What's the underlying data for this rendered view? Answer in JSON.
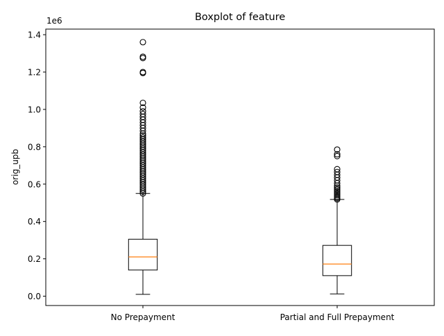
{
  "chart_data": {
    "type": "boxplot",
    "title": "Boxplot of feature",
    "xlabel": "",
    "ylabel": "orig_upb",
    "y_offset_label": "1e6",
    "ylim": [
      -50000,
      1430000
    ],
    "yticks": [
      0.0,
      0.2,
      0.4,
      0.6,
      0.8,
      1.0,
      1.2,
      1.4
    ],
    "ytick_labels": [
      "0.0",
      "0.2",
      "0.4",
      "0.6",
      "0.8",
      "1.0",
      "1.2",
      "1.4"
    ],
    "grid": false,
    "categories": [
      "No Prepayment",
      "Partial and Full Prepayment"
    ],
    "boxes": [
      {
        "whisker_low": 10000,
        "q1": 140000,
        "median": 210000,
        "q3": 305000,
        "whisker_high": 550000,
        "outliers": [
          550000,
          560000,
          570000,
          580000,
          590000,
          600000,
          610000,
          620000,
          630000,
          640000,
          650000,
          660000,
          670000,
          680000,
          690000,
          700000,
          710000,
          720000,
          730000,
          740000,
          750000,
          760000,
          770000,
          780000,
          790000,
          800000,
          810000,
          820000,
          830000,
          840000,
          850000,
          860000,
          870000,
          885000,
          900000,
          915000,
          930000,
          945000,
          960000,
          975000,
          990000,
          1010000,
          1035000,
          1195000,
          1200000,
          1275000,
          1282000,
          1360000
        ]
      },
      {
        "whisker_low": 12000,
        "q1": 110000,
        "median": 172000,
        "q3": 272000,
        "whisker_high": 518000,
        "outliers": [
          518000,
          525000,
          533000,
          541000,
          549000,
          557000,
          565000,
          573000,
          582000,
          592000,
          605000,
          620000,
          635000,
          650000,
          665000,
          680000,
          750000,
          760000,
          785000
        ]
      }
    ],
    "colors": {
      "box": "#000000",
      "median": "#ff7f0e",
      "outlier": "#000000"
    }
  }
}
